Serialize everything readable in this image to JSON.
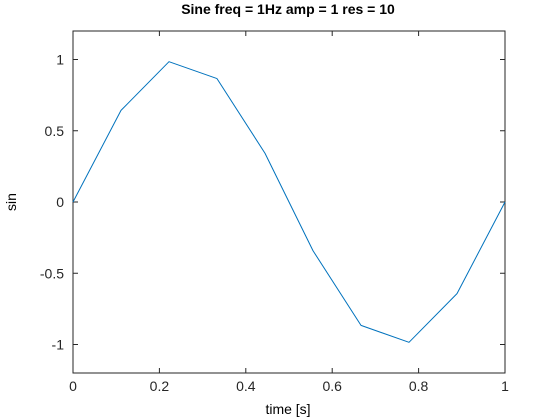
{
  "chart_data": {
    "type": "line",
    "title": "Sine freq = 1Hz amp = 1 res = 10",
    "xlabel": "time [s]",
    "ylabel": "sin",
    "xlim": [
      0,
      1
    ],
    "ylim": [
      -1.2,
      1.2
    ],
    "x_ticks": [
      0,
      0.2,
      0.4,
      0.6,
      0.8,
      1
    ],
    "x_tick_labels": [
      "0",
      "0.2",
      "0.4",
      "0.6",
      "0.8",
      "1"
    ],
    "y_ticks": [
      1,
      0.5,
      0,
      -0.5,
      -1
    ],
    "y_tick_labels": [
      "1",
      "0.5",
      "0",
      "-0.5",
      "-1"
    ],
    "grid": false,
    "series": [
      {
        "color": "#0072bd",
        "x": [
          0,
          0.1111,
          0.2222,
          0.3333,
          0.4444,
          0.5556,
          0.6667,
          0.7778,
          0.8889,
          1.0
        ],
        "y": [
          0,
          0.6428,
          0.9848,
          0.866,
          0.342,
          -0.342,
          -0.866,
          -0.9848,
          -0.6428,
          0
        ]
      }
    ]
  }
}
